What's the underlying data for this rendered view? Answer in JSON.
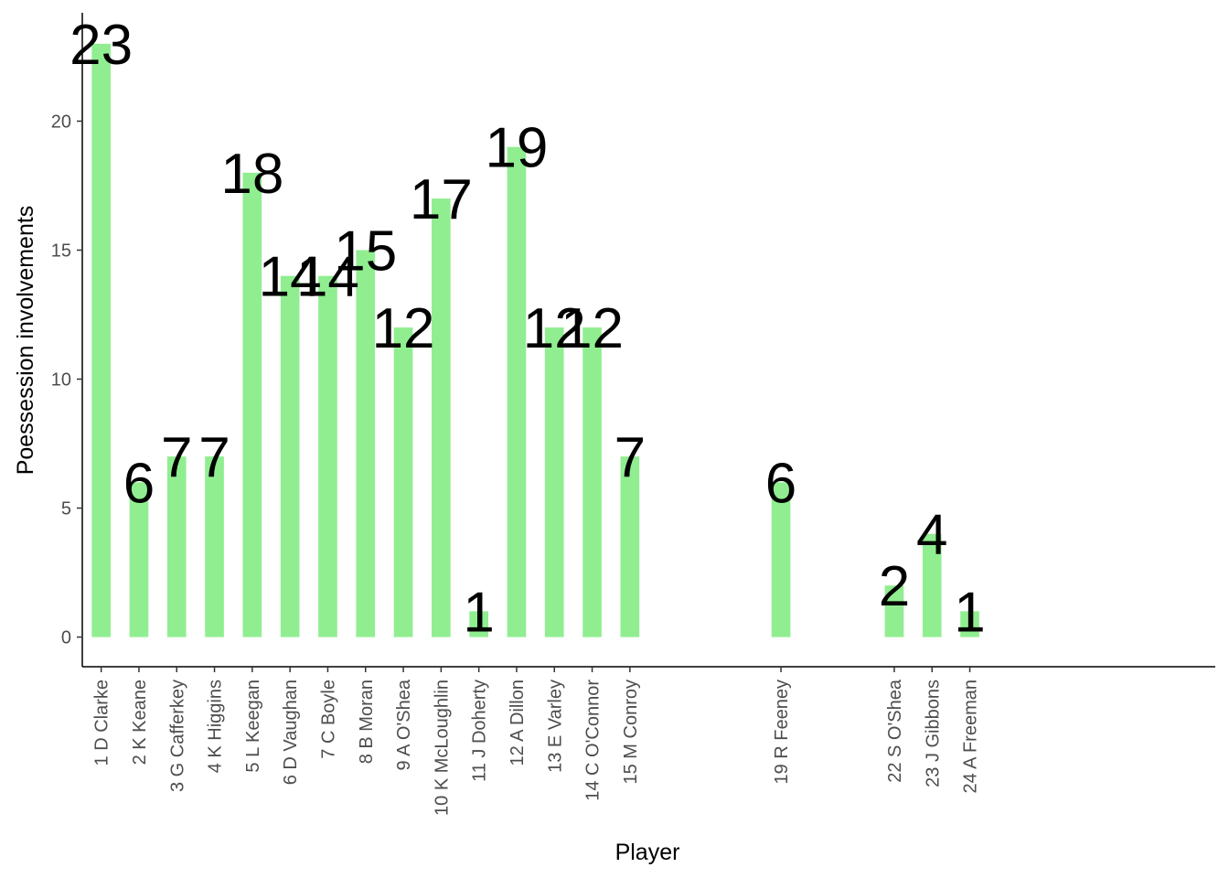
{
  "chart_data": {
    "type": "bar",
    "xlabel": "Player",
    "ylabel": "Poessession involvements",
    "ylim": [
      -1.15,
      24.2
    ],
    "yticks": [
      0,
      5,
      10,
      15,
      20
    ],
    "grid": false,
    "bar_color": "#90EE90",
    "axis_color": "#000000",
    "slots": 30,
    "categories": [
      "1 D Clarke",
      "2 K Keane",
      "3 G Cafferkey",
      "4 K Higgins",
      "5 L Keegan",
      "6 D Vaughan",
      "7 C Boyle",
      "8 B Moran",
      "9 A O'Shea",
      "10 K McLoughlin",
      "11 J Doherty",
      "12 A Dillon",
      "13 E Varley",
      "14 C O'Connor",
      "15 M Conroy",
      "19 R Feeney",
      "22 S O'Shea",
      "23 J Gibbons",
      "24 A Freeman"
    ],
    "slot_index": [
      1,
      2,
      3,
      4,
      5,
      6,
      7,
      8,
      9,
      10,
      11,
      12,
      13,
      14,
      15,
      19,
      22,
      23,
      24
    ],
    "values": [
      23,
      6,
      7,
      7,
      18,
      14,
      14,
      15,
      12,
      17,
      1,
      19,
      12,
      12,
      7,
      6,
      2,
      4,
      1
    ],
    "data_labels": [
      "23",
      "6",
      "7",
      "7",
      "18",
      "14",
      "14",
      "15",
      "12",
      "17",
      "1",
      "19",
      "12",
      "12",
      "7",
      "6",
      "2",
      "4",
      "1"
    ]
  }
}
